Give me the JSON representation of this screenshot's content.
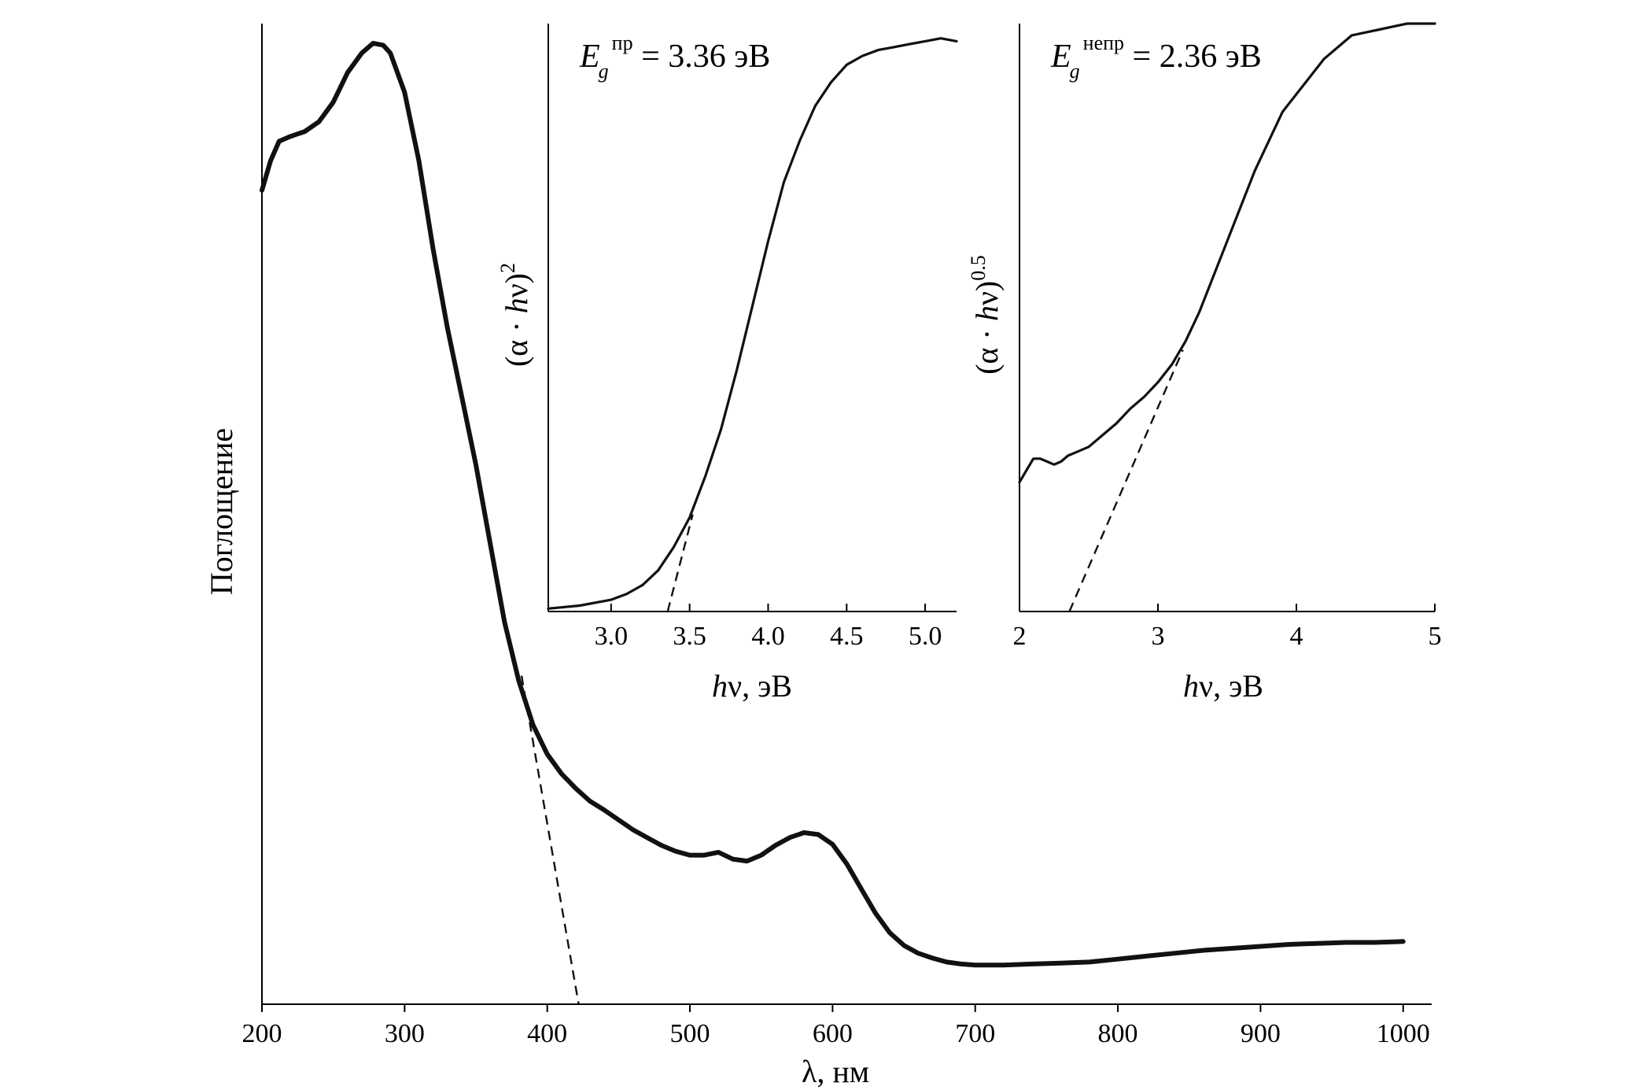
{
  "chart_data": [
    {
      "type": "line",
      "id": "main",
      "xlabel_symbol": "λ",
      "xlabel_unit": ", нм",
      "ylabel": "Поглощение",
      "xlim": [
        200,
        1020
      ],
      "ylim": [
        0,
        1.0
      ],
      "xticks": [
        200,
        300,
        400,
        500,
        600,
        700,
        800,
        900,
        1000
      ],
      "yticks": [],
      "series": [
        {
          "name": "absorbance",
          "x": [
            200,
            206,
            212,
            220,
            230,
            240,
            250,
            260,
            270,
            278,
            285,
            290,
            300,
            310,
            320,
            330,
            340,
            350,
            360,
            370,
            380,
            390,
            400,
            410,
            420,
            430,
            440,
            450,
            460,
            470,
            480,
            490,
            500,
            510,
            520,
            530,
            540,
            550,
            560,
            570,
            580,
            590,
            600,
            610,
            620,
            630,
            640,
            650,
            660,
            670,
            680,
            690,
            700,
            710,
            720,
            740,
            760,
            780,
            800,
            820,
            840,
            860,
            880,
            890,
            900,
            910,
            920,
            940,
            960,
            980,
            1000
          ],
          "y": [
            0.83,
            0.86,
            0.88,
            0.885,
            0.89,
            0.9,
            0.92,
            0.95,
            0.97,
            0.98,
            0.978,
            0.97,
            0.93,
            0.86,
            0.77,
            0.69,
            0.62,
            0.55,
            0.47,
            0.39,
            0.33,
            0.285,
            0.255,
            0.235,
            0.22,
            0.207,
            0.198,
            0.188,
            0.178,
            0.17,
            0.162,
            0.156,
            0.152,
            0.152,
            0.155,
            0.148,
            0.146,
            0.152,
            0.162,
            0.17,
            0.175,
            0.173,
            0.163,
            0.143,
            0.118,
            0.093,
            0.073,
            0.06,
            0.052,
            0.047,
            0.043,
            0.041,
            0.04,
            0.04,
            0.04,
            0.041,
            0.042,
            0.043,
            0.046,
            0.049,
            0.052,
            0.055,
            0.057,
            0.058,
            0.059,
            0.06,
            0.061,
            0.062,
            0.063,
            0.063,
            0.064
          ]
        },
        {
          "name": "edge-extrapolation",
          "style": "dashed",
          "x": [
            382,
            422
          ],
          "y": [
            0.335,
            0.0
          ]
        }
      ]
    },
    {
      "type": "line",
      "id": "inset-direct",
      "annotation": {
        "symbol": "E",
        "subscript": "g",
        "superscript": "пр",
        "text": " = 3.36 эВ"
      },
      "xlabel_symbol": "h",
      "xlabel_unit": "ν, эВ",
      "ylabel_text": "(α · ",
      "ylabel_symbol": "h",
      "ylabel_after": "ν)",
      "ylabel_power": "2",
      "xlim": [
        2.6,
        5.2
      ],
      "ylim": [
        0,
        1.0
      ],
      "xticks": [
        3.0,
        3.5,
        4.0,
        4.5,
        5.0
      ],
      "xtick_labels": [
        "3.0",
        "3.5",
        "4.0",
        "4.5",
        "5.0"
      ],
      "series": [
        {
          "name": "tauc-direct",
          "x": [
            2.6,
            2.8,
            3.0,
            3.1,
            3.2,
            3.3,
            3.4,
            3.5,
            3.6,
            3.7,
            3.8,
            3.9,
            4.0,
            4.1,
            4.2,
            4.3,
            4.4,
            4.5,
            4.6,
            4.7,
            4.8,
            4.9,
            5.0,
            5.1,
            5.2
          ],
          "y": [
            0.005,
            0.01,
            0.02,
            0.03,
            0.045,
            0.07,
            0.11,
            0.16,
            0.23,
            0.31,
            0.41,
            0.52,
            0.63,
            0.73,
            0.8,
            0.86,
            0.9,
            0.93,
            0.945,
            0.955,
            0.96,
            0.965,
            0.97,
            0.975,
            0.97
          ]
        },
        {
          "name": "fit-direct",
          "style": "dashed",
          "x": [
            3.36,
            3.52
          ],
          "y": [
            0.0,
            0.165
          ]
        }
      ]
    },
    {
      "type": "line",
      "id": "inset-indirect",
      "annotation": {
        "symbol": "E",
        "subscript": "g",
        "superscript": "непр",
        "text": " = 2.36 эВ"
      },
      "xlabel_symbol": "h",
      "xlabel_unit": "ν, эВ",
      "ylabel_text": "(α · ",
      "ylabel_symbol": "h",
      "ylabel_after": "ν)",
      "ylabel_power": "0.5",
      "xlim": [
        2.0,
        5.0
      ],
      "ylim": [
        0,
        1.0
      ],
      "xticks": [
        2,
        3,
        4,
        5
      ],
      "xtick_labels": [
        "2",
        "3",
        "4",
        "5"
      ],
      "series": [
        {
          "name": "tauc-indirect",
          "x": [
            2.0,
            2.05,
            2.1,
            2.15,
            2.2,
            2.25,
            2.3,
            2.35,
            2.4,
            2.5,
            2.6,
            2.7,
            2.8,
            2.9,
            3.0,
            3.1,
            3.2,
            3.3,
            3.4,
            3.5,
            3.6,
            3.7,
            3.8,
            3.9,
            4.0,
            4.1,
            4.2,
            4.3,
            4.4,
            4.5,
            4.6,
            4.7,
            4.8,
            4.9,
            5.0
          ],
          "y": [
            0.22,
            0.24,
            0.26,
            0.26,
            0.255,
            0.25,
            0.255,
            0.265,
            0.27,
            0.28,
            0.3,
            0.32,
            0.345,
            0.365,
            0.39,
            0.42,
            0.46,
            0.51,
            0.57,
            0.63,
            0.69,
            0.75,
            0.8,
            0.85,
            0.88,
            0.91,
            0.94,
            0.96,
            0.98,
            0.985,
            0.99,
            0.995,
            1.0,
            1.0,
            1.0
          ]
        },
        {
          "name": "fit-indirect",
          "style": "dashed",
          "x": [
            2.36,
            3.18
          ],
          "y": [
            0.0,
            0.445
          ]
        }
      ]
    }
  ]
}
